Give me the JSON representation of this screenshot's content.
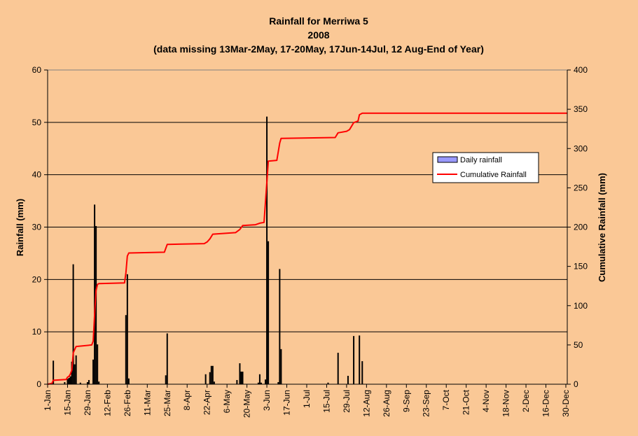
{
  "chart_data": {
    "type": "bar+line",
    "title": [
      "Rainfall for Merriwa 5",
      "2008",
      "(data missing 13Mar-2May, 17-20May, 17Jun-14Jul, 12 Aug-End of Year)"
    ],
    "ylabel": "Rainfall (mm)",
    "y2label": "Cumulative Rainfall (mm)",
    "ylim": [
      0,
      60
    ],
    "y2lim": [
      0,
      400
    ],
    "yticks": [
      "0",
      "10",
      "20",
      "30",
      "40",
      "50",
      "60"
    ],
    "y2ticks": [
      "0",
      "50",
      "100",
      "150",
      "200",
      "250",
      "300",
      "350",
      "400"
    ],
    "x_ticks": [
      {
        "day": 1,
        "label": "1-Jan"
      },
      {
        "day": 15,
        "label": "15-Jan"
      },
      {
        "day": 29,
        "label": "29-Jan"
      },
      {
        "day": 43,
        "label": "12-Feb"
      },
      {
        "day": 57,
        "label": "26-Feb"
      },
      {
        "day": 71,
        "label": "11-Mar"
      },
      {
        "day": 85,
        "label": "25-Mar"
      },
      {
        "day": 99,
        "label": "8-Apr"
      },
      {
        "day": 113,
        "label": "22-Apr"
      },
      {
        "day": 127,
        "label": "6-May"
      },
      {
        "day": 141,
        "label": "20-May"
      },
      {
        "day": 155,
        "label": "3-Jun"
      },
      {
        "day": 169,
        "label": "17-Jun"
      },
      {
        "day": 183,
        "label": "1-Jul"
      },
      {
        "day": 197,
        "label": "15-Jul"
      },
      {
        "day": 211,
        "label": "29-Jul"
      },
      {
        "day": 225,
        "label": "12-Aug"
      },
      {
        "day": 239,
        "label": "26-Aug"
      },
      {
        "day": 253,
        "label": "9-Sep"
      },
      {
        "day": 267,
        "label": "23-Sep"
      },
      {
        "day": 281,
        "label": "7-Oct"
      },
      {
        "day": 295,
        "label": "21-Oct"
      },
      {
        "day": 309,
        "label": "4-Nov"
      },
      {
        "day": 323,
        "label": "18-Nov"
      },
      {
        "day": 337,
        "label": "2-Dec"
      },
      {
        "day": 351,
        "label": "16-Dec"
      },
      {
        "day": 365,
        "label": "30-Dec"
      }
    ],
    "x_range": [
      1,
      366
    ],
    "grid": true,
    "legend_position": "right",
    "series": [
      {
        "name": "Daily rainfall",
        "type": "bar",
        "axis": "left",
        "color": "#9999FF",
        "points": [
          {
            "day": 5,
            "value": 4.5
          },
          {
            "day": 13,
            "value": 0.4
          },
          {
            "day": 15,
            "value": 1.0
          },
          {
            "day": 16,
            "value": 1.2
          },
          {
            "day": 17,
            "value": 1.5
          },
          {
            "day": 18,
            "value": 4.3
          },
          {
            "day": 19,
            "value": 22.9
          },
          {
            "day": 20,
            "value": 3.8
          },
          {
            "day": 21,
            "value": 5.5
          },
          {
            "day": 24,
            "value": 0.3
          },
          {
            "day": 29,
            "value": 0.4
          },
          {
            "day": 30,
            "value": 0.8
          },
          {
            "day": 33,
            "value": 4.7
          },
          {
            "day": 34,
            "value": 34.3
          },
          {
            "day": 35,
            "value": 30.2
          },
          {
            "day": 36,
            "value": 7.6
          },
          {
            "day": 37,
            "value": 0.5
          },
          {
            "day": 56,
            "value": 13.2
          },
          {
            "day": 57,
            "value": 21.0
          },
          {
            "day": 58,
            "value": 1.1
          },
          {
            "day": 84,
            "value": 1.7
          },
          {
            "day": 85,
            "value": 9.7
          },
          {
            "day": 112,
            "value": 1.9
          },
          {
            "day": 115,
            "value": 2.3
          },
          {
            "day": 116,
            "value": 3.5
          },
          {
            "day": 117,
            "value": 3.5
          },
          {
            "day": 118,
            "value": 0.5
          },
          {
            "day": 134,
            "value": 0.8
          },
          {
            "day": 136,
            "value": 4.0
          },
          {
            "day": 137,
            "value": 2.4
          },
          {
            "day": 138,
            "value": 2.4
          },
          {
            "day": 149,
            "value": 0.3
          },
          {
            "day": 150,
            "value": 1.9
          },
          {
            "day": 151,
            "value": 0.3
          },
          {
            "day": 154,
            "value": 0.9
          },
          {
            "day": 155,
            "value": 51.1
          },
          {
            "day": 156,
            "value": 27.3
          },
          {
            "day": 163,
            "value": 0.4
          },
          {
            "day": 164,
            "value": 22.0
          },
          {
            "day": 165,
            "value": 6.7
          },
          {
            "day": 198,
            "value": 0.3
          },
          {
            "day": 205,
            "value": 6.0
          },
          {
            "day": 212,
            "value": 1.6
          },
          {
            "day": 216,
            "value": 9.2
          },
          {
            "day": 220,
            "value": 9.3
          },
          {
            "day": 222,
            "value": 4.4
          }
        ]
      },
      {
        "name": "Cumulative Rainfall",
        "type": "line",
        "axis": "right",
        "color": "#FF0000",
        "points": [
          {
            "day": 1,
            "value": 0
          },
          {
            "day": 4,
            "value": 1
          },
          {
            "day": 5,
            "value": 5
          },
          {
            "day": 14,
            "value": 6
          },
          {
            "day": 15,
            "value": 9
          },
          {
            "day": 16,
            "value": 10
          },
          {
            "day": 17,
            "value": 13
          },
          {
            "day": 18,
            "value": 18
          },
          {
            "day": 19,
            "value": 40
          },
          {
            "day": 20,
            "value": 44
          },
          {
            "day": 21,
            "value": 48
          },
          {
            "day": 32,
            "value": 50
          },
          {
            "day": 33,
            "value": 55
          },
          {
            "day": 34,
            "value": 89
          },
          {
            "day": 35,
            "value": 119
          },
          {
            "day": 36,
            "value": 127
          },
          {
            "day": 37,
            "value": 128
          },
          {
            "day": 55,
            "value": 129
          },
          {
            "day": 56,
            "value": 142
          },
          {
            "day": 57,
            "value": 163
          },
          {
            "day": 58,
            "value": 167
          },
          {
            "day": 83,
            "value": 168
          },
          {
            "day": 85,
            "value": 178
          },
          {
            "day": 111,
            "value": 179
          },
          {
            "day": 113,
            "value": 181
          },
          {
            "day": 115,
            "value": 185
          },
          {
            "day": 117,
            "value": 191
          },
          {
            "day": 133,
            "value": 193
          },
          {
            "day": 136,
            "value": 197
          },
          {
            "day": 138,
            "value": 202
          },
          {
            "day": 147,
            "value": 203
          },
          {
            "day": 150,
            "value": 205
          },
          {
            "day": 153,
            "value": 206
          },
          {
            "day": 155,
            "value": 258
          },
          {
            "day": 156,
            "value": 284
          },
          {
            "day": 162,
            "value": 285
          },
          {
            "day": 164,
            "value": 307
          },
          {
            "day": 165,
            "value": 313
          },
          {
            "day": 203,
            "value": 314
          },
          {
            "day": 205,
            "value": 320
          },
          {
            "day": 211,
            "value": 322
          },
          {
            "day": 213,
            "value": 324
          },
          {
            "day": 216,
            "value": 333
          },
          {
            "day": 219,
            "value": 335
          },
          {
            "day": 220,
            "value": 343
          },
          {
            "day": 222,
            "value": 345
          },
          {
            "day": 366,
            "value": 345
          }
        ]
      }
    ]
  }
}
